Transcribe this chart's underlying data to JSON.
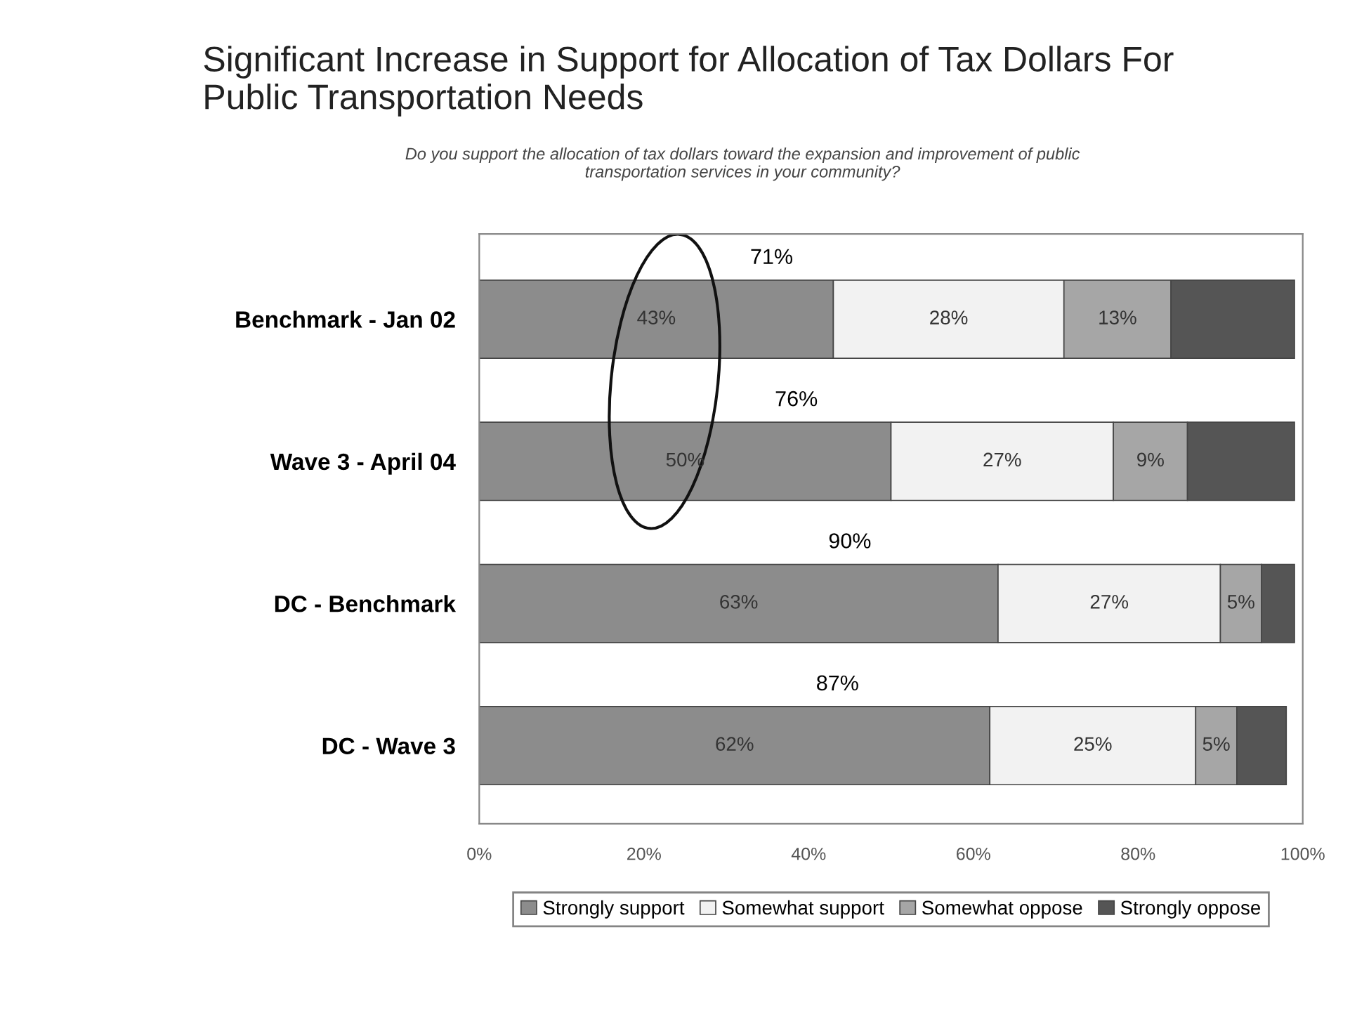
{
  "chart_data": {
    "type": "bar",
    "orientation": "horizontal",
    "stacked": true,
    "title": "Significant Increase in Support for Allocation of Tax Dollars For\nPublic Transportation Needs",
    "subtitle": "Do you support the allocation of tax dollars toward the expansion and improvement of public\ntransportation services in your community?",
    "categories": [
      "Benchmark - Jan 02",
      "Wave 3 - April 04",
      "DC - Benchmark",
      "DC - Wave 3"
    ],
    "series": [
      {
        "name": "Strongly support",
        "color": "#8c8c8c",
        "values": [
          43,
          50,
          63,
          62
        ],
        "value_labels": [
          "43%",
          "50%",
          "63%",
          "62%"
        ]
      },
      {
        "name": "Somewhat support",
        "color": "#f2f2f2",
        "values": [
          28,
          27,
          27,
          25
        ],
        "value_labels": [
          "28%",
          "27%",
          "27%",
          "25%"
        ]
      },
      {
        "name": "Somewhat oppose",
        "color": "#a6a6a6",
        "values": [
          13,
          9,
          5,
          5
        ],
        "value_labels": [
          "13%",
          "9%",
          "5%",
          "5%"
        ]
      },
      {
        "name": "Strongly oppose",
        "color": "#555555",
        "values": [
          15,
          13,
          4,
          6
        ],
        "value_labels": [
          null,
          null,
          null,
          null
        ]
      }
    ],
    "xlim": [
      0,
      100
    ],
    "xticks": [
      {
        "value": 0,
        "label": "0%"
      },
      {
        "value": 20,
        "label": "20%"
      },
      {
        "value": 40,
        "label": "40%"
      },
      {
        "value": 60,
        "label": "60%"
      },
      {
        "value": 80,
        "label": "80%"
      },
      {
        "value": 100,
        "label": "100%"
      }
    ],
    "annotations": [
      "71%",
      "76%",
      "90%",
      "87%"
    ],
    "legend": "bottom",
    "grid": false
  }
}
